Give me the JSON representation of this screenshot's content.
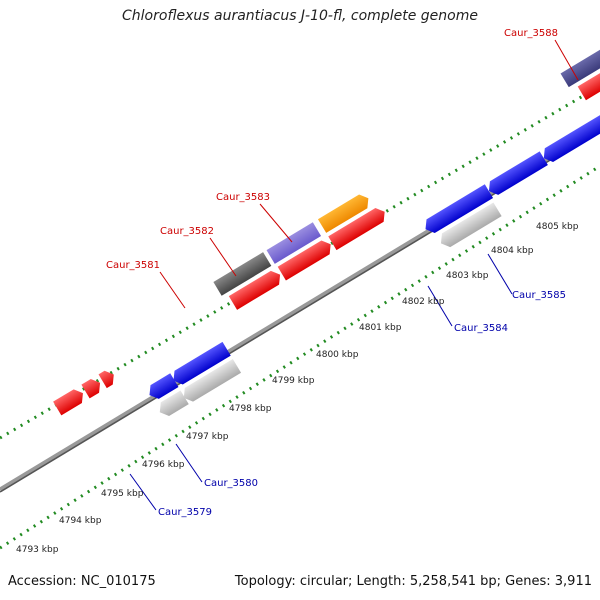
{
  "title": "Chloroflexus aurantiacus J-10-fl, complete genome",
  "footer": {
    "accession": "Accession: NC_010175",
    "summary": "Topology: circular; Length: 5,258,541 bp; Genes: 3,911"
  },
  "colors": {
    "backbone": "#777777",
    "tick": "#228b22",
    "label_red": "#cc0000",
    "label_blue": "#0000aa"
  },
  "kbp_labels": [
    "4793 kbp",
    "4794 kbp",
    "4795 kbp",
    "4796 kbp",
    "4797 kbp",
    "4798 kbp",
    "4799 kbp",
    "4800 kbp",
    "4801 kbp",
    "4802 kbp",
    "4803 kbp",
    "4804 kbp",
    "4805 kbp"
  ],
  "loci": [
    {
      "name": "Caur_3588",
      "strand": "+",
      "color": "red"
    },
    {
      "name": "Caur_3583",
      "strand": "+",
      "color": "red"
    },
    {
      "name": "Caur_3582",
      "strand": "+",
      "color": "red"
    },
    {
      "name": "Caur_3581",
      "strand": "+",
      "color": "red"
    },
    {
      "name": "Caur_3585",
      "strand": "-",
      "color": "blue"
    },
    {
      "name": "Caur_3584",
      "strand": "-",
      "color": "blue"
    },
    {
      "name": "Caur_3580",
      "strand": "-",
      "color": "blue"
    },
    {
      "name": "Caur_3579",
      "strand": "-",
      "color": "blue"
    }
  ]
}
